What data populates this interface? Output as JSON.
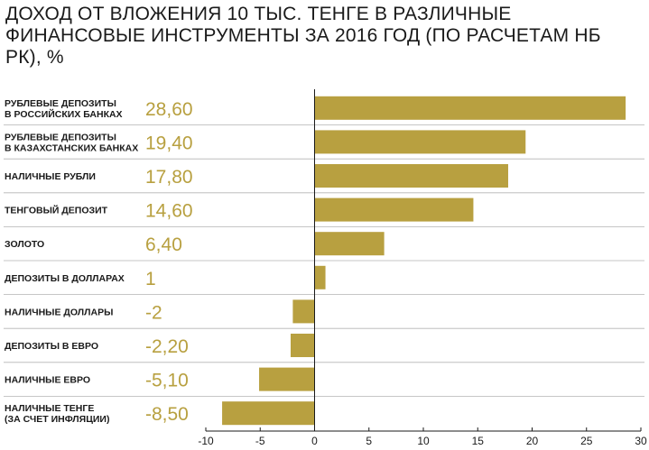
{
  "chart_data": {
    "type": "bar",
    "orientation": "horizontal",
    "title": "ДОХОД ОТ ВЛОЖЕНИЯ 10 ТЫС. ТЕНГЕ В РАЗЛИЧНЫЕ ФИНАНСОВЫЕ ИНСТРУМЕНТЫ ЗА 2016 ГОД (ПО РАСЧЕТАМ НБ РК), %",
    "categories": [
      [
        "РУБЛЕВЫЕ ДЕПОЗИТЫ",
        "В РОССИЙСКИХ БАНКАХ"
      ],
      [
        "РУБЛЕВЫЕ ДЕПОЗИТЫ",
        "В КАЗАХСТАНСКИХ БАНКАХ"
      ],
      [
        "НАЛИЧНЫЕ РУБЛИ"
      ],
      [
        "ТЕНГОВЫЙ ДЕПОЗИТ"
      ],
      [
        "ЗОЛОТО"
      ],
      [
        "ДЕПОЗИТЫ В ДОЛЛАРАХ"
      ],
      [
        "НАЛИЧНЫЕ ДОЛЛАРЫ"
      ],
      [
        "ДЕПОЗИТЫ В ЕВРО"
      ],
      [
        "НАЛИЧНЫЕ ЕВРО"
      ],
      [
        "НАЛИЧНЫЕ ТЕНГЕ",
        "(ЗА СЧЕТ ИНФЛЯЦИИ)"
      ]
    ],
    "values": [
      28.6,
      19.4,
      17.8,
      14.6,
      6.4,
      1,
      -2,
      -2.2,
      -5.1,
      -8.5
    ],
    "value_labels": [
      "28,60",
      "19,40",
      "17,80",
      "14,60",
      "6,40",
      "1",
      "-2",
      "-2,20",
      "-5,10",
      "-8,50"
    ],
    "xlim": [
      -10,
      30
    ],
    "x_ticks": [
      -10,
      -5,
      0,
      5,
      10,
      15,
      20,
      25,
      30
    ],
    "x_tick_labels": [
      "-10",
      "-5",
      "0",
      "5",
      "10",
      "15",
      "20",
      "25",
      "30"
    ],
    "xlabel": "",
    "ylabel": "",
    "grid": "horizontal separators",
    "legend": "none",
    "colors": {
      "bar": "#b8a040",
      "value_label": "#b8a040",
      "separator": "#b3b3b3",
      "axis": "#1a1a1a",
      "text": "#1a1a1a"
    }
  }
}
